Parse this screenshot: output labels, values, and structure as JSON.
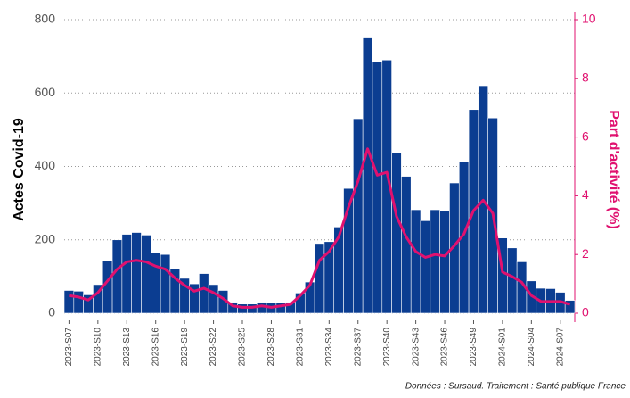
{
  "chart_data": {
    "type": "bar",
    "y_label": "Actes Covid-19",
    "y2_label": "Part d'activité (%)",
    "caption": "Données : Sursaud. Traitement : Santé publique France",
    "categories": [
      "2023-S07",
      null,
      null,
      "2023-S10",
      null,
      null,
      "2023-S13",
      null,
      null,
      "2023-S16",
      null,
      null,
      "2023-S19",
      null,
      null,
      "2023-S22",
      null,
      null,
      "2023-S25",
      null,
      null,
      "2023-S28",
      null,
      null,
      "2023-S31",
      null,
      null,
      "2023-S34",
      null,
      null,
      "2023-S37",
      null,
      null,
      "2023-S40",
      null,
      null,
      "2023-S43",
      null,
      null,
      "2023-S46",
      null,
      null,
      "2023-S49",
      null,
      null,
      "2024-S01",
      null,
      null,
      "2024-S04",
      null,
      null,
      "2024-S07",
      null
    ],
    "series": [
      {
        "type": "bar",
        "color": "#0b3d91",
        "values": [
          62,
          60,
          50,
          78,
          143,
          200,
          215,
          220,
          213,
          165,
          160,
          120,
          95,
          80,
          108,
          78,
          62,
          30,
          25,
          25,
          30,
          28,
          28,
          30,
          55,
          85,
          190,
          195,
          235,
          340,
          530,
          750,
          685,
          690,
          437,
          373,
          282,
          252,
          282,
          278,
          355,
          412,
          555,
          620,
          532,
          205,
          178,
          140,
          88,
          68,
          67,
          57,
          35
        ]
      },
      {
        "type": "line",
        "axis": "y2",
        "color": "#e0116f",
        "values": [
          0.6,
          0.55,
          0.45,
          0.7,
          1.1,
          1.5,
          1.75,
          1.8,
          1.75,
          1.6,
          1.5,
          1.2,
          0.95,
          0.75,
          0.85,
          0.7,
          0.5,
          0.25,
          0.2,
          0.2,
          0.25,
          0.2,
          0.25,
          0.3,
          0.6,
          0.95,
          1.8,
          2.1,
          2.6,
          3.6,
          4.5,
          5.6,
          4.7,
          4.8,
          3.3,
          2.6,
          2.1,
          1.9,
          2.0,
          1.95,
          2.3,
          2.7,
          3.5,
          3.85,
          3.4,
          1.4,
          1.25,
          1.05,
          0.6,
          0.4,
          0.4,
          0.4,
          0.3
        ]
      }
    ],
    "ylim": [
      0,
      800
    ],
    "yticks": [
      0,
      200,
      400,
      600,
      800
    ],
    "y2lim": [
      0,
      10
    ],
    "y2ticks": [
      0,
      2,
      4,
      6,
      8,
      10
    ],
    "y2color": "#e0116f",
    "grid": true
  }
}
